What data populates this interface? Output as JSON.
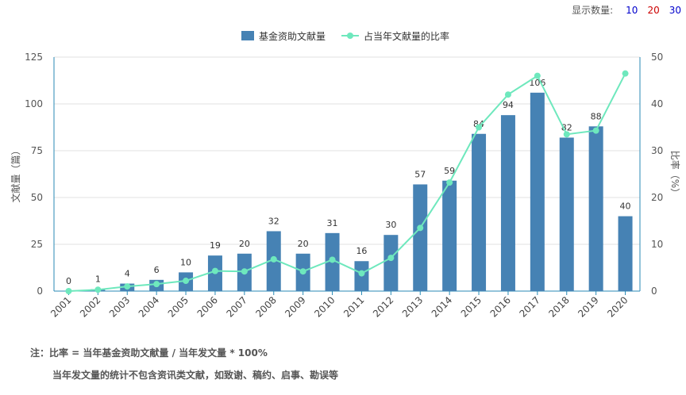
{
  "display_count": {
    "label": "显示数量:",
    "options": [
      {
        "label": "10",
        "color": "#0000cc"
      },
      {
        "label": "20",
        "color": "#cc0000"
      },
      {
        "label": "30",
        "color": "#0000cc"
      }
    ]
  },
  "notes": {
    "line1": "注：比率 = 当年基金资助文献量 / 当年发文量 * 100%",
    "line2": "当年发文量的统计不包含资讯类文献，如致谢、稿约、启事、勘误等"
  },
  "chart_data": {
    "type": "bar",
    "categories": [
      "2001",
      "2002",
      "2003",
      "2004",
      "2005",
      "2006",
      "2007",
      "2008",
      "2009",
      "2010",
      "2011",
      "2012",
      "2013",
      "2014",
      "2015",
      "2016",
      "2017",
      "2018",
      "2019",
      "2020"
    ],
    "series": [
      {
        "name": "基金资助文献量",
        "type": "bar",
        "axis": "left",
        "color": "#4682b4",
        "values": [
          0,
          1,
          4,
          6,
          10,
          19,
          20,
          32,
          20,
          31,
          16,
          30,
          57,
          59,
          84,
          94,
          106,
          82,
          88,
          40
        ]
      },
      {
        "name": "占当年文献量的比率",
        "type": "line",
        "axis": "right",
        "color": "#6ee8bd",
        "values": [
          0,
          0.3,
          1,
          1.5,
          2.2,
          4.3,
          4.2,
          6.8,
          4.2,
          6.7,
          3.8,
          7.1,
          13.5,
          23.2,
          35,
          42,
          46,
          33.5,
          34.3,
          46.5
        ]
      }
    ],
    "ylabel": "文献量（篇）",
    "y2label": "比率（%）",
    "ylim": [
      0,
      125
    ],
    "y2lim": [
      0,
      50
    ],
    "yticks": [
      0,
      25,
      50,
      75,
      100,
      125
    ],
    "y2ticks": [
      0,
      10,
      20,
      30,
      40,
      50
    ],
    "grid": true,
    "legend": "top-center"
  }
}
